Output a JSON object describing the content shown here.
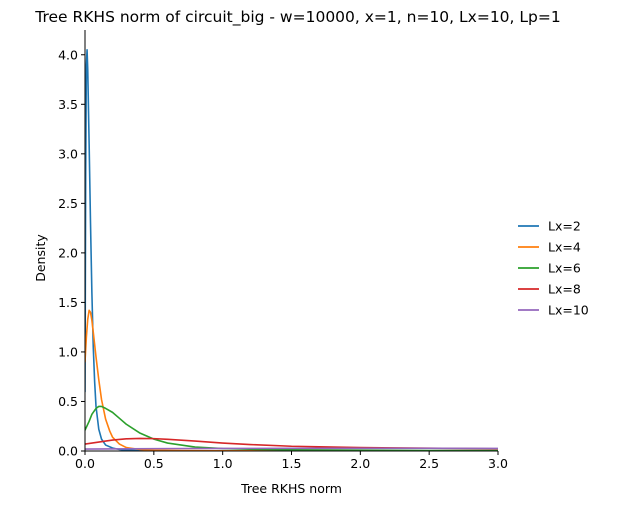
{
  "chart_data": {
    "type": "line",
    "title": "Tree RKHS norm of circuit_big - w=10000, x=1, n=10, Lx=10, Lp=1",
    "xlabel": "Tree RKHS norm",
    "ylabel": "Density",
    "xlim": [
      0,
      3.0
    ],
    "ylim": [
      0,
      4.25
    ],
    "xticks": [
      0.0,
      0.5,
      1.0,
      1.5,
      2.0,
      2.5,
      3.0
    ],
    "xtick_labels": [
      "0.0",
      "0.5",
      "1.0",
      "1.5",
      "2.0",
      "2.5",
      "3.0"
    ],
    "yticks": [
      0.0,
      0.5,
      1.0,
      1.5,
      2.0,
      2.5,
      3.0,
      3.5,
      4.0
    ],
    "ytick_labels": [
      "0.0",
      "0.5",
      "1.0",
      "1.5",
      "2.0",
      "2.5",
      "3.0",
      "3.5",
      "4.0"
    ],
    "grid": false,
    "legend_position": "right",
    "series": [
      {
        "name": "Lx=2",
        "color": "#1f77b4",
        "x": [
          0.0,
          0.005,
          0.01,
          0.015,
          0.02,
          0.03,
          0.04,
          0.05,
          0.06,
          0.07,
          0.08,
          0.1,
          0.12,
          0.15,
          0.2,
          0.25,
          0.3,
          0.4,
          0.6,
          1.0,
          2.0,
          3.0
        ],
        "y": [
          0.6,
          2.8,
          3.9,
          4.05,
          3.85,
          3.1,
          2.3,
          1.6,
          1.05,
          0.7,
          0.45,
          0.22,
          0.12,
          0.06,
          0.03,
          0.015,
          0.008,
          0.004,
          0.002,
          0.001,
          0.0,
          0.0
        ]
      },
      {
        "name": "Lx=4",
        "color": "#ff7f0e",
        "x": [
          0.0,
          0.01,
          0.02,
          0.03,
          0.04,
          0.05,
          0.06,
          0.08,
          0.1,
          0.12,
          0.15,
          0.18,
          0.2,
          0.25,
          0.3,
          0.4,
          0.5,
          0.7,
          1.0,
          1.5,
          2.0,
          3.0
        ],
        "y": [
          0.9,
          1.15,
          1.33,
          1.42,
          1.4,
          1.32,
          1.2,
          0.95,
          0.72,
          0.52,
          0.32,
          0.2,
          0.14,
          0.07,
          0.035,
          0.015,
          0.008,
          0.004,
          0.002,
          0.001,
          0.0,
          0.0
        ]
      },
      {
        "name": "Lx=6",
        "color": "#2ca02c",
        "x": [
          0.0,
          0.03,
          0.05,
          0.08,
          0.1,
          0.12,
          0.15,
          0.2,
          0.25,
          0.3,
          0.4,
          0.5,
          0.6,
          0.8,
          1.0,
          1.2,
          1.5,
          2.0,
          2.5,
          3.0
        ],
        "y": [
          0.21,
          0.3,
          0.37,
          0.43,
          0.45,
          0.45,
          0.43,
          0.39,
          0.33,
          0.27,
          0.18,
          0.12,
          0.08,
          0.04,
          0.025,
          0.018,
          0.012,
          0.008,
          0.005,
          0.004
        ]
      },
      {
        "name": "Lx=8",
        "color": "#d62728",
        "x": [
          0.0,
          0.1,
          0.2,
          0.3,
          0.4,
          0.5,
          0.6,
          0.8,
          1.0,
          1.2,
          1.5,
          2.0,
          2.5,
          3.0
        ],
        "y": [
          0.07,
          0.09,
          0.11,
          0.123,
          0.127,
          0.125,
          0.118,
          0.1,
          0.08,
          0.065,
          0.048,
          0.035,
          0.028,
          0.022
        ]
      },
      {
        "name": "Lx=10",
        "color": "#9467bd",
        "x": [
          0.0,
          0.5,
          1.0,
          1.5,
          2.0,
          2.5,
          3.0
        ],
        "y": [
          0.02,
          0.024,
          0.026,
          0.027,
          0.027,
          0.027,
          0.026
        ]
      }
    ]
  }
}
